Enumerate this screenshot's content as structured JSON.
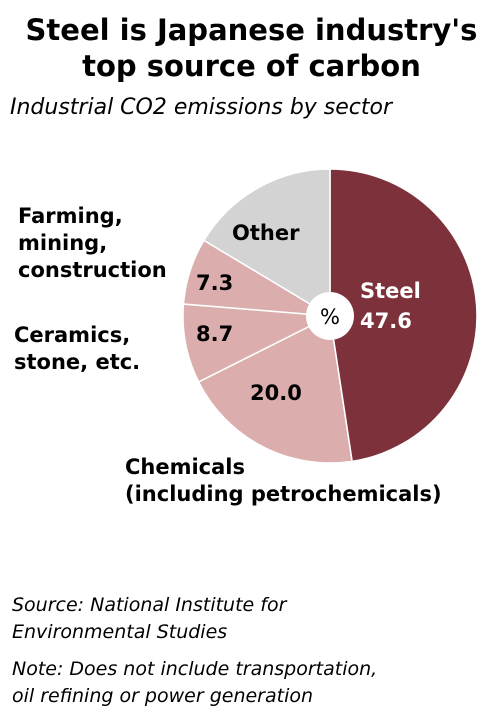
{
  "title_line1": "Steel is Japanese industry's",
  "title_line2": "top source of carbon",
  "subtitle": "Industrial CO2 emissions by sector",
  "chart_data": {
    "type": "pie",
    "unit_label": "%",
    "slices": [
      {
        "name": "Steel",
        "value": 47.6,
        "value_label": "47.6",
        "color": "#7d323b"
      },
      {
        "name": "Chemicals",
        "name_line2": "(including petrochemicals)",
        "value": 20.0,
        "value_label": "20.0",
        "color": "#dcadad"
      },
      {
        "name": "Ceramics,",
        "name_line2": "stone, etc.",
        "value": 8.7,
        "value_label": "8.7",
        "color": "#dcadad"
      },
      {
        "name": "Farming,",
        "name_line2": "mining,",
        "name_line3": "construction",
        "value": 7.3,
        "value_label": "7.3",
        "color": "#dcadad"
      },
      {
        "name": "Other",
        "value": 16.4,
        "color": "#d3d3d3"
      }
    ]
  },
  "source_line1": "Source: National Institute for",
  "source_line2": "Environmental Studies",
  "note_line1": "Note: Does not include transportation,",
  "note_line2": "oil refining or power generation"
}
